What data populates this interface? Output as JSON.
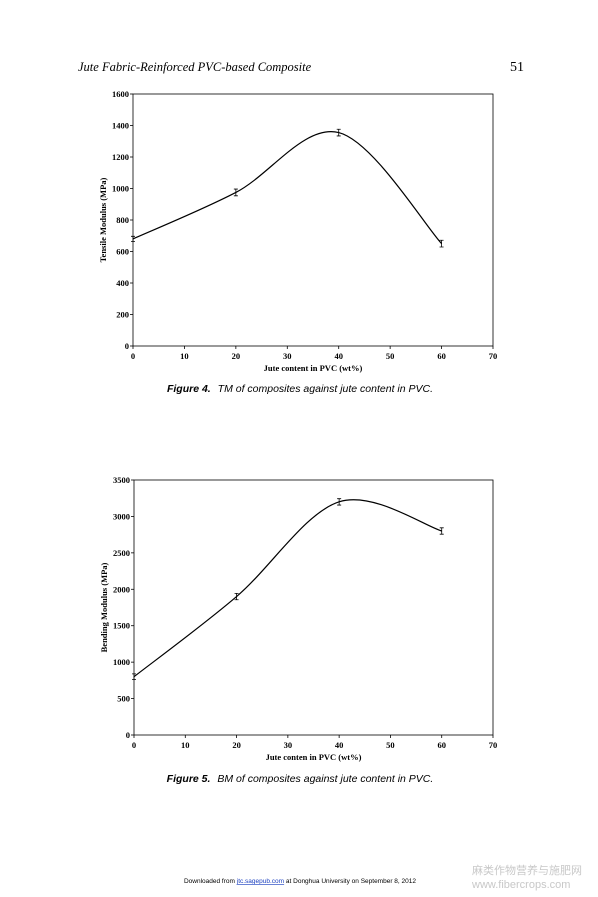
{
  "header": {
    "title": "Jute Fabric-Reinforced PVC-based Composite",
    "page": "51"
  },
  "chart_data": [
    {
      "type": "line",
      "x_label": "Jute content in PVC (wt%)",
      "y_label": "Tensile Modulus (MPa)",
      "x": [
        0,
        20,
        40,
        60
      ],
      "series": [
        {
          "name": "TM",
          "color": "#000000",
          "values": [
            680,
            975,
            1355,
            650
          ],
          "errors": [
            10,
            15,
            15,
            15
          ]
        }
      ],
      "xlim": [
        0,
        70
      ],
      "xticks": [
        0,
        10,
        20,
        30,
        40,
        50,
        60,
        70
      ],
      "ylim": [
        0,
        1600
      ],
      "yticks": [
        0,
        200,
        400,
        600,
        800,
        1000,
        1200,
        1400,
        1600
      ],
      "grid": false
    },
    {
      "type": "line",
      "x_label": "Jute conten in PVC (wt%)",
      "y_label": "Bending Modulus (MPa)",
      "x": [
        0,
        20,
        40,
        60
      ],
      "series": [
        {
          "name": "BM",
          "color": "#000000",
          "values": [
            800,
            1900,
            3200,
            2800
          ],
          "errors": [
            25,
            30,
            30,
            30
          ]
        }
      ],
      "xlim": [
        0,
        70
      ],
      "xticks": [
        0,
        10,
        20,
        30,
        40,
        50,
        60,
        70
      ],
      "ylim": [
        0,
        3500
      ],
      "yticks": [
        0,
        500,
        1000,
        1500,
        2000,
        2500,
        3000,
        3500
      ],
      "grid": false
    }
  ],
  "captions": [
    {
      "label": "Figure 4.",
      "text": "TM of composites against jute content in PVC."
    },
    {
      "label": "Figure 5.",
      "text": "BM of composites against jute content in PVC."
    }
  ],
  "footer": {
    "prefix": "Downloaded from",
    "link": "jtc.sagepub.com",
    "suffix": "at Donghua University on September 8, 2012"
  },
  "watermark": {
    "name": "麻类作物营养与施肥网",
    "url": "www.fibercrops.com"
  }
}
